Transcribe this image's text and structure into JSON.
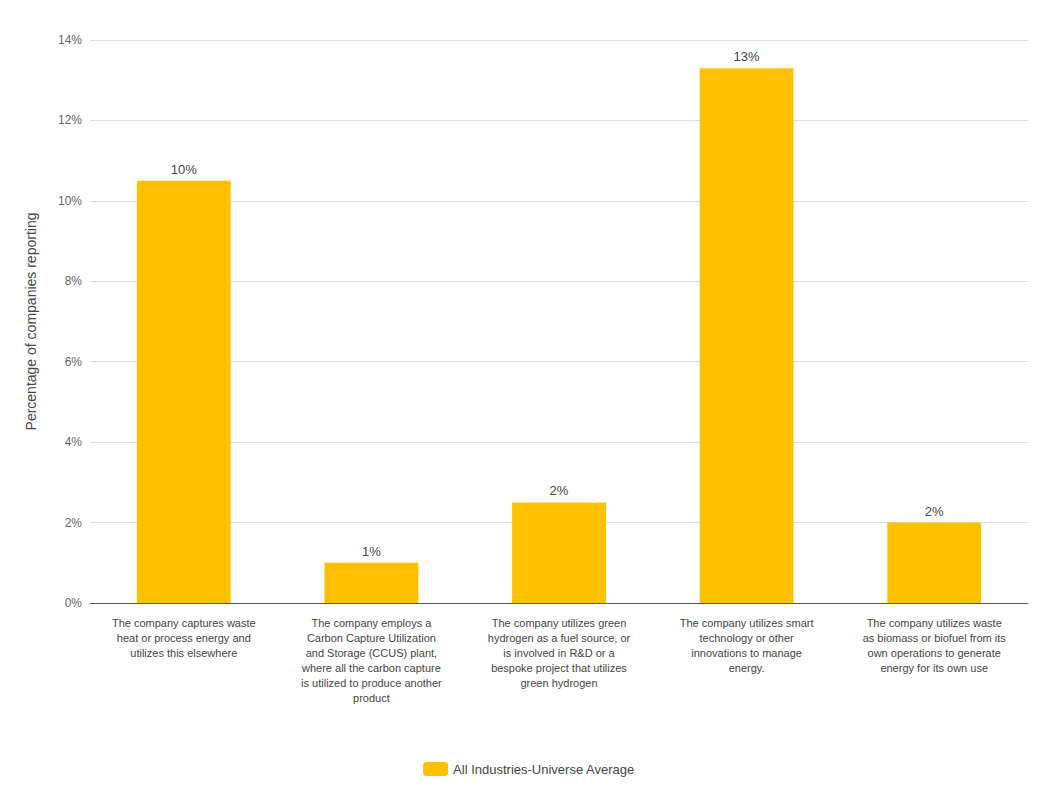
{
  "chart_data": {
    "type": "bar",
    "categories": [
      "The company captures waste\nheat or process energy and\nutilizes this elsewhere",
      "The company employs a\nCarbon Capture Utilization\nand Storage (CCUS) plant,\nwhere all the carbon capture\nis utilized to produce another\nproduct",
      "The company utilizes green\nhydrogen as a fuel source, or\nis involved in R&D or a\nbespoke project that utilizes\ngreen hydrogen",
      "The company utilizes smart\ntechnology or other\ninnovations to manage\nenergy.",
      "The company utilizes waste\nas biomass or biofuel from its\nown operations to generate\nenergy for its own use"
    ],
    "series": [
      {
        "name": "All Industries-Universe Average",
        "color": "#FFC000",
        "values": [
          10.5,
          1.0,
          2.5,
          13.3,
          2.0
        ],
        "value_labels": [
          "10%",
          "1%",
          "2%",
          "13%",
          "2%"
        ]
      }
    ],
    "ylabel": "Percentage of companies reporting",
    "ylim": [
      0,
      14
    ],
    "yticks": [
      {
        "value": 0,
        "label": "0%"
      },
      {
        "value": 2,
        "label": "2%"
      },
      {
        "value": 4,
        "label": "4%"
      },
      {
        "value": 6,
        "label": "6%"
      },
      {
        "value": 8,
        "label": "8%"
      },
      {
        "value": 10,
        "label": "10%"
      },
      {
        "value": 12,
        "label": "12%"
      },
      {
        "value": 14,
        "label": "14%"
      }
    ],
    "grid": true,
    "legend": "bottom",
    "data_labels": true
  }
}
